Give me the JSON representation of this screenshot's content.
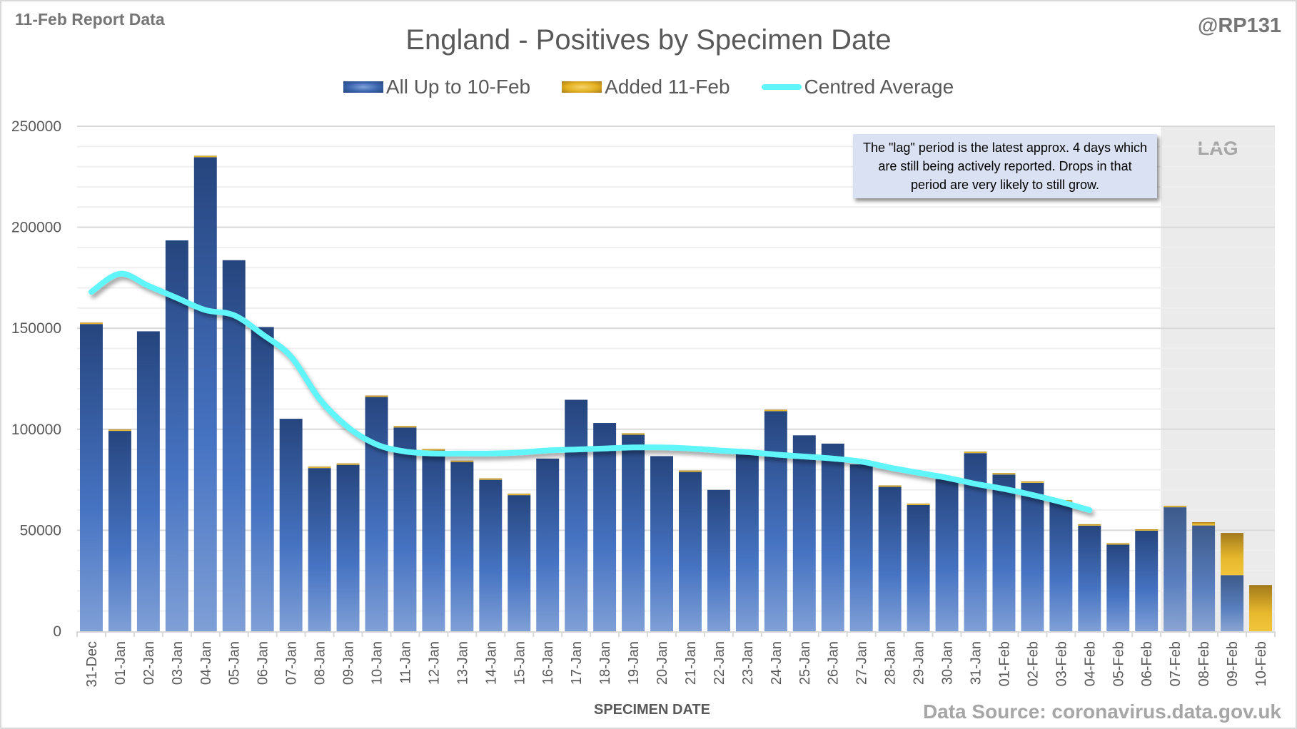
{
  "header": {
    "report_label": "11-Feb Report Data",
    "handle": "@RP131",
    "source": "Data Source: coronavirus.data.gov.uk"
  },
  "annotation": {
    "note": "The \"lag\" period is the latest approx. 4 days which are still being actively reported.  Drops in that period are very likely to still grow.",
    "lag_label": "LAG"
  },
  "colors": {
    "base_bar": "#3a64ad",
    "added_bar": "#e3b021",
    "average_line": "#5ff5f9",
    "lag_shade": "#ebebeb"
  },
  "chart_data": {
    "type": "bar",
    "stacked": true,
    "title": "England - Positives by Specimen Date",
    "xlabel": "SPECIMEN DATE",
    "ylabel": "",
    "ylim": [
      0,
      250000
    ],
    "yticks": [
      0,
      50000,
      100000,
      150000,
      200000,
      250000
    ],
    "grid": true,
    "legend_position": "top",
    "lag_period": [
      "07-Feb",
      "10-Feb"
    ],
    "categories": [
      "31-Dec",
      "01-Jan",
      "02-Jan",
      "03-Jan",
      "04-Jan",
      "05-Jan",
      "06-Jan",
      "07-Jan",
      "08-Jan",
      "09-Jan",
      "10-Jan",
      "11-Jan",
      "12-Jan",
      "13-Jan",
      "14-Jan",
      "15-Jan",
      "16-Jan",
      "17-Jan",
      "18-Jan",
      "19-Jan",
      "20-Jan",
      "21-Jan",
      "22-Jan",
      "23-Jan",
      "24-Jan",
      "25-Jan",
      "26-Jan",
      "27-Jan",
      "28-Jan",
      "29-Jan",
      "30-Jan",
      "31-Jan",
      "01-Feb",
      "02-Feb",
      "03-Feb",
      "04-Feb",
      "05-Feb",
      "06-Feb",
      "07-Feb",
      "08-Feb",
      "09-Feb",
      "10-Feb"
    ],
    "series": [
      {
        "name": "All Up to 10-Feb",
        "type": "bar",
        "values": [
          152100,
          99200,
          148500,
          193500,
          234700,
          183700,
          150600,
          105200,
          80800,
          82400,
          116000,
          100900,
          89500,
          83800,
          75000,
          67400,
          85500,
          114600,
          103100,
          97300,
          86700,
          78900,
          70000,
          88400,
          109000,
          97000,
          92900,
          82600,
          71500,
          62500,
          75300,
          88200,
          77600,
          73500,
          64200,
          52300,
          42900,
          49800,
          61400,
          52400,
          27800,
          0
        ]
      },
      {
        "name": "Added 11-Feb",
        "type": "bar",
        "values": [
          500,
          300,
          0,
          0,
          500,
          0,
          0,
          0,
          300,
          300,
          300,
          200,
          200,
          200,
          300,
          200,
          0,
          0,
          0,
          200,
          0,
          200,
          0,
          0,
          300,
          0,
          0,
          0,
          200,
          200,
          0,
          200,
          200,
          200,
          200,
          200,
          200,
          200,
          400,
          1600,
          20900,
          22900
        ]
      },
      {
        "name": "Centred Average",
        "type": "line",
        "values": [
          168000,
          177000,
          171000,
          165000,
          159000,
          156500,
          147000,
          136000,
          115000,
          101000,
          92500,
          89000,
          88000,
          88000,
          88000,
          88500,
          89500,
          90000,
          90500,
          91000,
          91000,
          90500,
          89500,
          88700,
          87500,
          86500,
          85500,
          84000,
          81000,
          78500,
          76000,
          73000,
          70500,
          67500,
          64000,
          60000,
          null,
          null,
          null,
          null,
          null,
          null
        ]
      }
    ]
  }
}
